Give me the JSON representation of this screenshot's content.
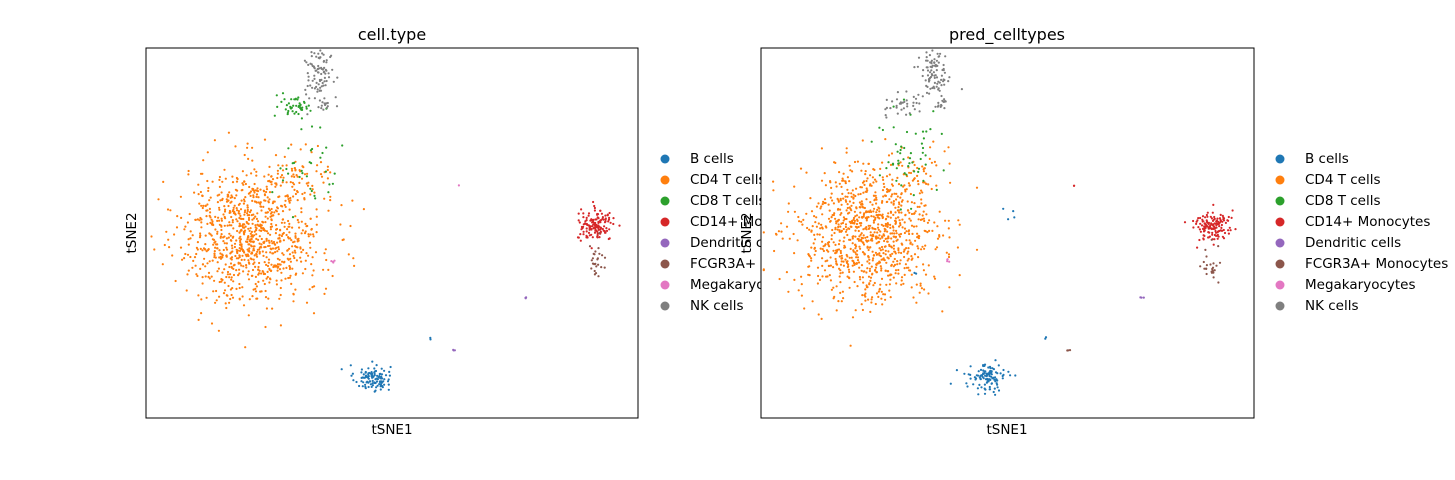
{
  "chart_data": [
    {
      "type": "scatter",
      "title": "cell.type",
      "xlabel": "tSNE1",
      "ylabel": "tSNE2",
      "grid": false,
      "legend_position": "right",
      "xlim": [
        -40,
        48
      ],
      "ylim": [
        -38,
        36
      ],
      "series": [
        {
          "name": "B cells",
          "color": "#1f77b4",
          "clusters": [
            {
              "cx": 0.5,
              "cy": -30,
              "sx": 1.6,
              "sy": 1.3,
              "n": 110
            },
            {
              "cx": -5,
              "cy": -28,
              "sx": 0.2,
              "sy": 0.2,
              "n": 1
            },
            {
              "cx": 10.8,
              "cy": -22,
              "sx": 0.1,
              "sy": 0.2,
              "n": 2
            }
          ]
        },
        {
          "name": "CD4 T cells",
          "color": "#ff7f0e",
          "clusters": [
            {
              "cx": -21,
              "cy": -1.5,
              "sx": 6.2,
              "sy": 6.8,
              "n": 950
            },
            {
              "cx": -12,
              "cy": 10,
              "sx": 2.5,
              "sy": 3,
              "n": 60
            }
          ]
        },
        {
          "name": "CD8 T cells",
          "color": "#2ca02c",
          "clusters": [
            {
              "cx": -13.5,
              "cy": 24.5,
              "sx": 1.4,
              "sy": 1.2,
              "n": 45
            },
            {
              "cx": -11,
              "cy": 13,
              "sx": 3.2,
              "sy": 4.5,
              "n": 35
            }
          ]
        },
        {
          "name": "CD14+ Monocytes",
          "color": "#d62728",
          "clusters": [
            {
              "cx": 40.5,
              "cy": 0.5,
              "sx": 1.6,
              "sy": 1.5,
              "n": 140
            }
          ]
        },
        {
          "name": "Dendritic cells",
          "color": "#9467bd",
          "clusters": [
            {
              "cx": 15,
              "cy": -24.5,
              "sx": 0.15,
              "sy": 0.15,
              "n": 3
            },
            {
              "cx": 28,
              "cy": -14,
              "sx": 0.15,
              "sy": 0.15,
              "n": 3
            }
          ]
        },
        {
          "name": "FCGR3A+ Monocytes",
          "color": "#8c564b",
          "clusters": [
            {
              "cx": 40.5,
              "cy": -7,
              "sx": 0.9,
              "sy": 1.8,
              "n": 25
            }
          ]
        },
        {
          "name": "Megakaryocytes",
          "color": "#e377c2",
          "clusters": [
            {
              "cx": -6.5,
              "cy": -6.5,
              "sx": 0.25,
              "sy": 0.25,
              "n": 4
            },
            {
              "cx": 16,
              "cy": 8.5,
              "sx": 0.1,
              "sy": 0.1,
              "n": 1
            }
          ]
        },
        {
          "name": "NK cells",
          "color": "#7f7f7f",
          "clusters": [
            {
              "cx": -9,
              "cy": 31,
              "sx": 1.3,
              "sy": 2.4,
              "n": 85
            },
            {
              "cx": -8,
              "cy": 25,
              "sx": 0.8,
              "sy": 0.8,
              "n": 15
            }
          ]
        }
      ]
    },
    {
      "type": "scatter",
      "title": "pred_celltypes",
      "xlabel": "tSNE1",
      "ylabel": "tSNE2",
      "grid": false,
      "legend_position": "right",
      "xlim": [
        -40,
        48
      ],
      "ylim": [
        -38,
        36
      ],
      "series": [
        {
          "name": "B cells",
          "color": "#1f77b4",
          "clusters": [
            {
              "cx": 0.5,
              "cy": -30,
              "sx": 1.6,
              "sy": 1.3,
              "n": 110
            },
            {
              "cx": -5,
              "cy": -28,
              "sx": 0.2,
              "sy": 0.2,
              "n": 1
            },
            {
              "cx": 4.5,
              "cy": 2.5,
              "sx": 1.0,
              "sy": 1.2,
              "n": 4
            },
            {
              "cx": -12,
              "cy": -9,
              "sx": 0.3,
              "sy": 0.3,
              "n": 2
            },
            {
              "cx": 10.8,
              "cy": -22,
              "sx": 0.1,
              "sy": 0.2,
              "n": 2
            }
          ]
        },
        {
          "name": "CD4 T cells",
          "color": "#ff7f0e",
          "clusters": [
            {
              "cx": -21,
              "cy": -1.5,
              "sx": 6.2,
              "sy": 6.8,
              "n": 950
            },
            {
              "cx": -12,
              "cy": 10,
              "sx": 2.5,
              "sy": 3,
              "n": 60
            }
          ]
        },
        {
          "name": "CD8 T cells",
          "color": "#2ca02c",
          "clusters": [
            {
              "cx": -14.5,
              "cy": 15,
              "sx": 2.8,
              "sy": 5,
              "n": 55
            }
          ]
        },
        {
          "name": "CD14+ Monocytes",
          "color": "#d62728",
          "clusters": [
            {
              "cx": 40.5,
              "cy": 0.5,
              "sx": 1.6,
              "sy": 1.5,
              "n": 140
            },
            {
              "cx": 16,
              "cy": 8.5,
              "sx": 0.1,
              "sy": 0.1,
              "n": 2
            },
            {
              "cx": 35.5,
              "cy": 1.5,
              "sx": 0.2,
              "sy": 0.2,
              "n": 1
            }
          ]
        },
        {
          "name": "Dendritic cells",
          "color": "#9467bd",
          "clusters": [
            {
              "cx": 28,
              "cy": -14,
              "sx": 0.15,
              "sy": 0.15,
              "n": 3
            }
          ]
        },
        {
          "name": "FCGR3A+ Monocytes",
          "color": "#8c564b",
          "clusters": [
            {
              "cx": 40.5,
              "cy": -7,
              "sx": 0.9,
              "sy": 1.8,
              "n": 25
            },
            {
              "cx": 15,
              "cy": -24.5,
              "sx": 0.15,
              "sy": 0.15,
              "n": 3
            }
          ]
        },
        {
          "name": "Megakaryocytes",
          "color": "#e377c2",
          "clusters": [
            {
              "cx": -6.5,
              "cy": -6.5,
              "sx": 0.25,
              "sy": 0.25,
              "n": 4
            }
          ]
        },
        {
          "name": "NK cells",
          "color": "#7f7f7f",
          "clusters": [
            {
              "cx": -9,
              "cy": 31,
              "sx": 1.3,
              "sy": 2.4,
              "n": 85
            },
            {
              "cx": -8,
              "cy": 25,
              "sx": 0.8,
              "sy": 0.8,
              "n": 15
            },
            {
              "cx": -14.5,
              "cy": 24.5,
              "sx": 1.6,
              "sy": 1.3,
              "n": 35
            }
          ]
        }
      ]
    }
  ]
}
